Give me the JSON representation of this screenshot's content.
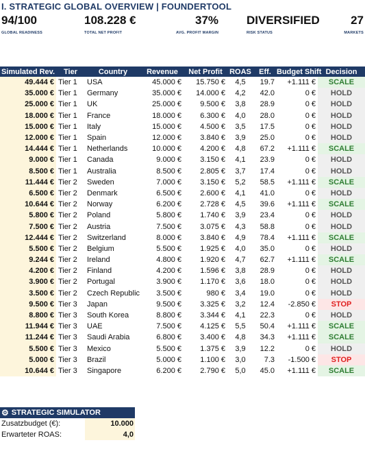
{
  "title": "I. STRATEGIC GLOBAL OVERVIEW | FOUNDERTOOL",
  "kpis": [
    {
      "value": "94/100",
      "label": "GLOBAL READINESS"
    },
    {
      "value": "108.228 €",
      "label": "TOTAL NET PROFIT"
    },
    {
      "value": "37%",
      "label": "AVG. PROFIT MARGIN"
    },
    {
      "value": "DIVERSIFIED",
      "label": "RISK STATUS"
    },
    {
      "value": "27",
      "label": "MARKETS"
    }
  ],
  "table": {
    "headers": [
      "Simulated Rev.",
      "Tier",
      "Country",
      "Revenue",
      "Net Profit",
      "ROAS",
      "Eff.",
      "Budget Shift",
      "Decision"
    ],
    "rows": [
      [
        "49.444 €",
        "Tier 1",
        "USA",
        "45.000 €",
        "15.750 €",
        "4,5",
        "19.7",
        "+1.111 €",
        "SCALE"
      ],
      [
        "35.000 €",
        "Tier 1",
        "Germany",
        "35.000 €",
        "14.000 €",
        "4,2",
        "42.0",
        "0 €",
        "HOLD"
      ],
      [
        "25.000 €",
        "Tier 1",
        "UK",
        "25.000 €",
        "9.500 €",
        "3,8",
        "28.9",
        "0 €",
        "HOLD"
      ],
      [
        "18.000 €",
        "Tier 1",
        "France",
        "18.000 €",
        "6.300 €",
        "4,0",
        "28.0",
        "0 €",
        "HOLD"
      ],
      [
        "15.000 €",
        "Tier 1",
        "Italy",
        "15.000 €",
        "4.500 €",
        "3,5",
        "17.5",
        "0 €",
        "HOLD"
      ],
      [
        "12.000 €",
        "Tier 1",
        "Spain",
        "12.000 €",
        "3.840 €",
        "3,9",
        "25.0",
        "0 €",
        "HOLD"
      ],
      [
        "14.444 €",
        "Tier 1",
        "Netherlands",
        "10.000 €",
        "4.200 €",
        "4,8",
        "67.2",
        "+1.111 €",
        "SCALE"
      ],
      [
        "9.000 €",
        "Tier 1",
        "Canada",
        "9.000 €",
        "3.150 €",
        "4,1",
        "23.9",
        "0 €",
        "HOLD"
      ],
      [
        "8.500 €",
        "Tier 1",
        "Australia",
        "8.500 €",
        "2.805 €",
        "3,7",
        "17.4",
        "0 €",
        "HOLD"
      ],
      [
        "11.444 €",
        "Tier 2",
        "Sweden",
        "7.000 €",
        "3.150 €",
        "5,2",
        "58.5",
        "+1.111 €",
        "SCALE"
      ],
      [
        "6.500 €",
        "Tier 2",
        "Denmark",
        "6.500 €",
        "2.600 €",
        "4,1",
        "41.0",
        "0 €",
        "HOLD"
      ],
      [
        "10.644 €",
        "Tier 2",
        "Norway",
        "6.200 €",
        "2.728 €",
        "4,5",
        "39.6",
        "+1.111 €",
        "SCALE"
      ],
      [
        "5.800 €",
        "Tier 2",
        "Poland",
        "5.800 €",
        "1.740 €",
        "3,9",
        "23.4",
        "0 €",
        "HOLD"
      ],
      [
        "7.500 €",
        "Tier 2",
        "Austria",
        "7.500 €",
        "3.075 €",
        "4,3",
        "58.8",
        "0 €",
        "HOLD"
      ],
      [
        "12.444 €",
        "Tier 2",
        "Switzerland",
        "8.000 €",
        "3.840 €",
        "4,9",
        "78.4",
        "+1.111 €",
        "SCALE"
      ],
      [
        "5.500 €",
        "Tier 2",
        "Belgium",
        "5.500 €",
        "1.925 €",
        "4,0",
        "35.0",
        "0 €",
        "HOLD"
      ],
      [
        "9.244 €",
        "Tier 2",
        "Ireland",
        "4.800 €",
        "1.920 €",
        "4,7",
        "62.7",
        "+1.111 €",
        "SCALE"
      ],
      [
        "4.200 €",
        "Tier 2",
        "Finland",
        "4.200 €",
        "1.596 €",
        "3,8",
        "28.9",
        "0 €",
        "HOLD"
      ],
      [
        "3.900 €",
        "Tier 2",
        "Portugal",
        "3.900 €",
        "1.170 €",
        "3,6",
        "18.0",
        "0 €",
        "HOLD"
      ],
      [
        "3.500 €",
        "Tier 2",
        "Czech Republic",
        "3.500 €",
        "980 €",
        "3,4",
        "19.0",
        "0 €",
        "HOLD"
      ],
      [
        "9.500 €",
        "Tier 3",
        "Japan",
        "9.500 €",
        "3.325 €",
        "3,2",
        "12.4",
        "-2.850 €",
        "STOP"
      ],
      [
        "8.800 €",
        "Tier 3",
        "South Korea",
        "8.800 €",
        "3.344 €",
        "4,1",
        "22.3",
        "0 €",
        "HOLD"
      ],
      [
        "11.944 €",
        "Tier 3",
        "UAE",
        "7.500 €",
        "4.125 €",
        "5,5",
        "50.4",
        "+1.111 €",
        "SCALE"
      ],
      [
        "11.244 €",
        "Tier 3",
        "Saudi Arabia",
        "6.800 €",
        "3.400 €",
        "4,8",
        "34.3",
        "+1.111 €",
        "SCALE"
      ],
      [
        "5.500 €",
        "Tier 3",
        "Mexico",
        "5.500 €",
        "1.375 €",
        "3,9",
        "12.2",
        "0 €",
        "HOLD"
      ],
      [
        "5.000 €",
        "Tier 3",
        "Brazil",
        "5.000 €",
        "1.100 €",
        "3,0",
        "7.3",
        "-1.500 €",
        "STOP"
      ],
      [
        "10.644 €",
        "Tier 3",
        "Singapore",
        "6.200 €",
        "2.790 €",
        "5,0",
        "45.0",
        "+1.111 €",
        "SCALE"
      ]
    ]
  },
  "simulator": {
    "icon": "gear-icon",
    "title": "STRATEGIC SIMULATOR",
    "budget_label": "Zusatzbudget (€):",
    "budget_value": "10.000",
    "roas_label": "Erwarteter ROAS:",
    "roas_value": "4,0"
  },
  "colors": {
    "header_bg": "#1f3a66",
    "sim_bg": "#fdf5dc",
    "scale": "#2e7d32",
    "hold": "#555555",
    "stop": "#e02020"
  }
}
